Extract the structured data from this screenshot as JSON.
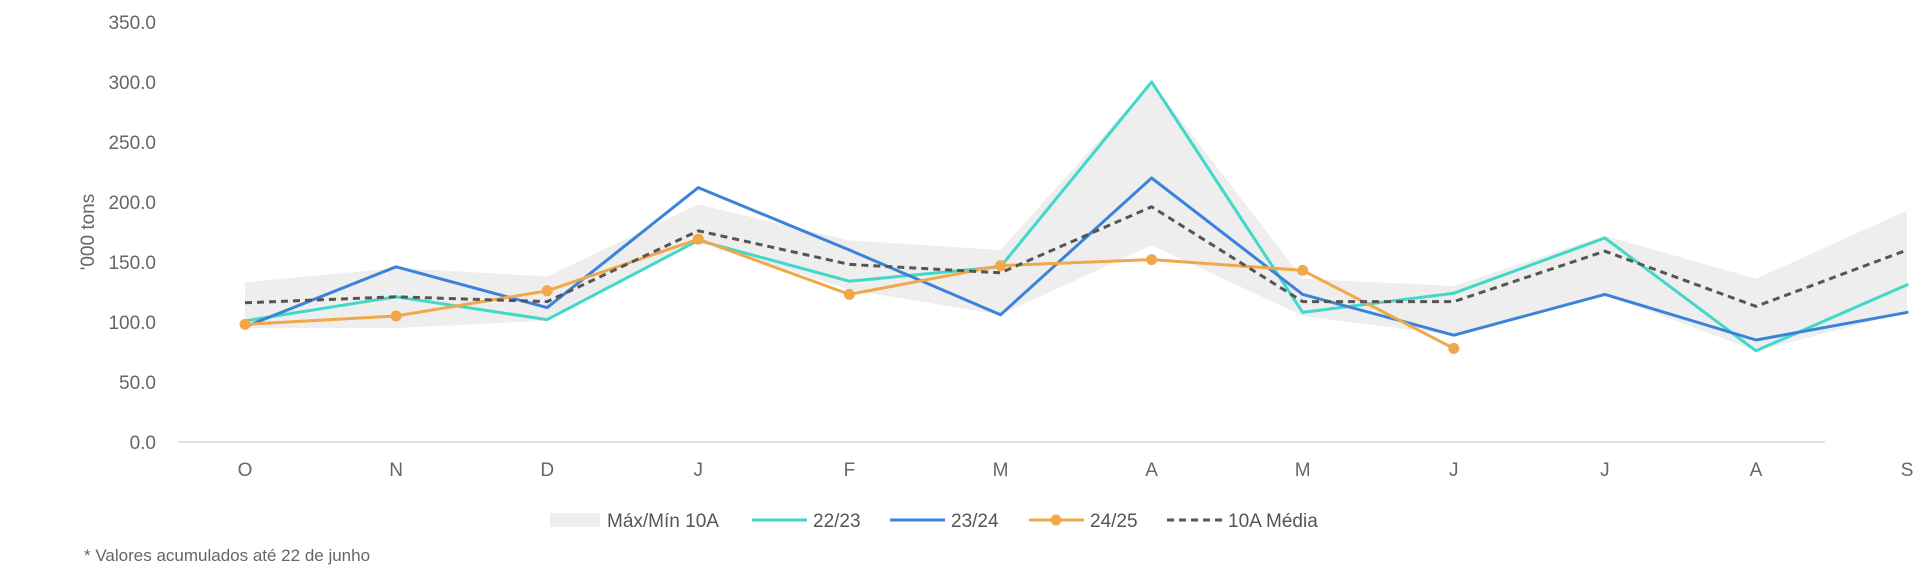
{
  "chart_data": {
    "type": "line",
    "categories": [
      "O",
      "N",
      "D",
      "J",
      "F",
      "M",
      "A",
      "M",
      "J",
      "J",
      "A",
      "S"
    ],
    "ylabel": "'000 tons",
    "ylim": [
      0,
      350
    ],
    "yticks": [
      "0.0",
      "50.0",
      "100.0",
      "150.0",
      "200.0",
      "250.0",
      "300.0",
      "350.0"
    ],
    "band": {
      "name": "Máx/Mín 10A",
      "color": "#eeeeee",
      "max": [
        133,
        145,
        138,
        198,
        168,
        160,
        300,
        136,
        130,
        172,
        136,
        193
      ],
      "min": [
        95,
        95,
        101,
        168,
        127,
        106,
        164,
        105,
        89,
        123,
        76,
        108
      ]
    },
    "series": [
      {
        "name": "22/23",
        "color": "#40d8c8",
        "style": "solid",
        "markers": false,
        "values": [
          101,
          121,
          102,
          168,
          134,
          146,
          300,
          108,
          124,
          170,
          76,
          131
        ]
      },
      {
        "name": "23/24",
        "color": "#3b82db",
        "style": "solid",
        "markers": false,
        "values": [
          96,
          146,
          112,
          212,
          160,
          106,
          220,
          123,
          89,
          123,
          85,
          108
        ]
      },
      {
        "name": "24/25",
        "color": "#f0a84a",
        "style": "solid",
        "markers": true,
        "values": [
          98,
          105,
          126,
          169,
          123,
          147,
          152,
          143,
          78,
          null,
          null,
          null
        ]
      },
      {
        "name": "10A Média",
        "color": "#555555",
        "style": "dashed",
        "markers": false,
        "values": [
          116,
          121,
          117,
          176,
          148,
          141,
          196,
          117,
          117,
          159,
          113,
          160
        ]
      }
    ],
    "grid": false,
    "legend_position": "bottom"
  },
  "footnote": "* Valores acumulados até 22 de junho"
}
